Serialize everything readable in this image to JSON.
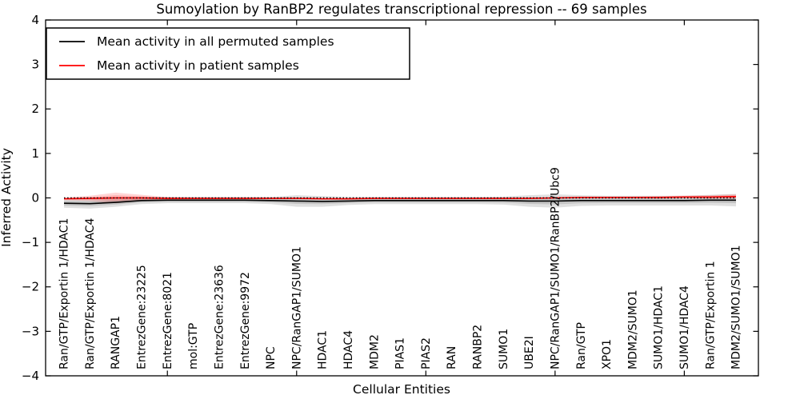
{
  "chart_data": {
    "type": "line",
    "title": "Sumoylation by RanBP2 regulates transcriptional repression -- 69 samples",
    "xlabel": "Cellular Entities",
    "ylabel": "Inferred Activity",
    "ylim": [
      -4,
      4
    ],
    "grid": false,
    "legend_position": "upper left",
    "background_color": "#ffffff",
    "axis_color": "#000000",
    "yticks": [
      {
        "label": "4",
        "value": 4
      },
      {
        "label": "3",
        "value": 3
      },
      {
        "label": "2",
        "value": 2
      },
      {
        "label": "1",
        "value": 1
      },
      {
        "label": "0",
        "value": 0
      },
      {
        "label": "−1",
        "value": -1
      },
      {
        "label": "−2",
        "value": -2
      },
      {
        "label": "−3",
        "value": -3
      },
      {
        "label": "−4",
        "value": -4
      }
    ],
    "x_major_tick_indices": [
      4,
      9,
      14,
      19,
      24
    ],
    "categories": [
      "Ran/GTP/Exportin 1/HDAC1",
      "Ran/GTP/Exportin 1/HDAC4",
      "RANGAP1",
      "EntrezGene:23225",
      "EntrezGene:8021",
      "mol:GTP",
      "EntrezGene:23636",
      "EntrezGene:9972",
      "NPC",
      "NPC/RanGAP1/SUMO1",
      "HDAC1",
      "HDAC4",
      "MDM2",
      "PIAS1",
      "PIAS2",
      "RAN",
      "RANBP2",
      "SUMO1",
      "UBE2I",
      "NPC/RanGAP1/SUMO1/RanBP2/Ubc9",
      "Ran/GTP",
      "XPO1",
      "MDM2/SUMO1",
      "SUMO1/HDAC1",
      "SUMO1/HDAC4",
      "Ran/GTP/Exportin 1",
      "MDM2/SUMO1/SUMO1"
    ],
    "zero_line": {
      "value": 0,
      "style": "dotted",
      "color": "#000000"
    },
    "series": [
      {
        "name": "Mean activity in all permuted samples",
        "color": "#000000",
        "band_color": "rgba(0,0,0,0.12)",
        "values": [
          -0.12,
          -0.13,
          -0.1,
          -0.06,
          -0.05,
          -0.05,
          -0.05,
          -0.05,
          -0.06,
          -0.07,
          -0.08,
          -0.07,
          -0.06,
          -0.06,
          -0.06,
          -0.06,
          -0.06,
          -0.06,
          -0.07,
          -0.07,
          -0.06,
          -0.06,
          -0.06,
          -0.06,
          -0.06,
          -0.05,
          -0.05
        ],
        "band_halfwidth": [
          0.1,
          0.11,
          0.1,
          0.08,
          0.07,
          0.07,
          0.07,
          0.07,
          0.08,
          0.13,
          0.12,
          0.09,
          0.08,
          0.08,
          0.08,
          0.08,
          0.08,
          0.09,
          0.13,
          0.15,
          0.12,
          0.11,
          0.11,
          0.11,
          0.11,
          0.12,
          0.14
        ]
      },
      {
        "name": "Mean activity in patient samples",
        "color": "#ff0000",
        "band_color": "rgba(255,0,0,0.16)",
        "values": [
          -0.02,
          -0.01,
          0.0,
          0.0,
          -0.01,
          -0.01,
          -0.01,
          -0.01,
          -0.01,
          -0.01,
          -0.02,
          -0.02,
          -0.01,
          -0.01,
          -0.01,
          -0.01,
          -0.01,
          -0.01,
          -0.01,
          0.0,
          0.01,
          0.01,
          0.01,
          0.01,
          0.02,
          0.02,
          0.03
        ],
        "band_halfwidth": [
          0.03,
          0.06,
          0.12,
          0.07,
          0.03,
          0.02,
          0.02,
          0.02,
          0.02,
          0.02,
          0.02,
          0.02,
          0.02,
          0.02,
          0.02,
          0.02,
          0.02,
          0.02,
          0.02,
          0.02,
          0.02,
          0.02,
          0.02,
          0.03,
          0.03,
          0.04,
          0.05
        ]
      }
    ]
  }
}
